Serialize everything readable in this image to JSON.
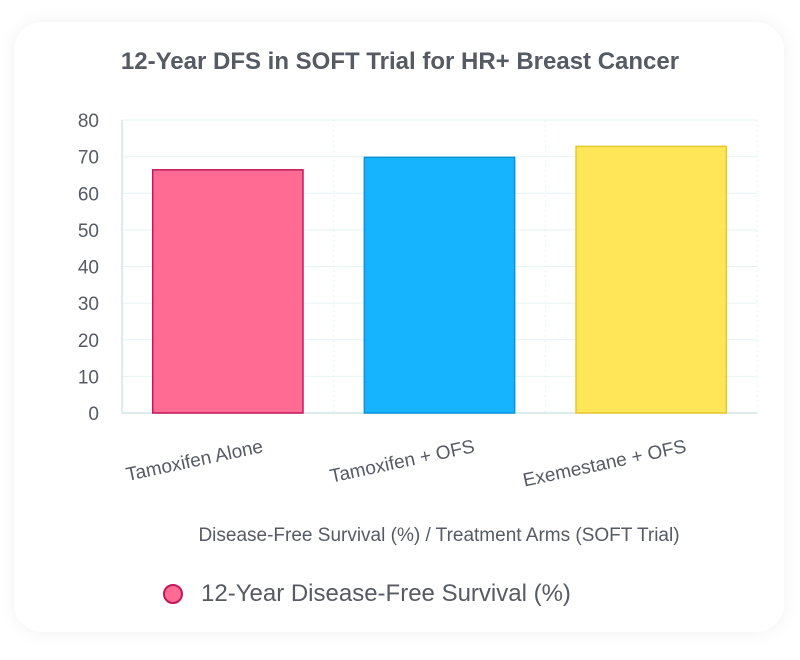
{
  "colors": {
    "bar_fills": [
      "#ff6b92",
      "#16b4ff",
      "#ffe659"
    ],
    "bar_strokes": [
      "#c2185b",
      "#0a92d8",
      "#e6c72e"
    ],
    "text": "#555a63",
    "grid": "#e4f4f2"
  },
  "legend": {
    "label": "12-Year Disease-Free Survival (%)",
    "color": "#ff6b92"
  },
  "chart_data": {
    "type": "bar",
    "title": "12-Year DFS in SOFT Trial for HR+ Breast Cancer",
    "categories": [
      "Tamoxifen Alone",
      "Tamoxifen + OFS",
      "Exemestane + OFS"
    ],
    "series": [
      {
        "name": "12-Year Disease-Free Survival (%)",
        "values": [
          66.4,
          69.8,
          72.8
        ]
      }
    ],
    "xlabel": "Disease-Free Survival (%) / Treatment Arms (SOFT Trial)",
    "ylabel": "",
    "ylim": [
      0,
      80
    ],
    "yticks": [
      "0",
      "10",
      "20",
      "30",
      "40",
      "50",
      "60",
      "70",
      "80"
    ],
    "grid": true,
    "legend_position": "bottom-left"
  }
}
